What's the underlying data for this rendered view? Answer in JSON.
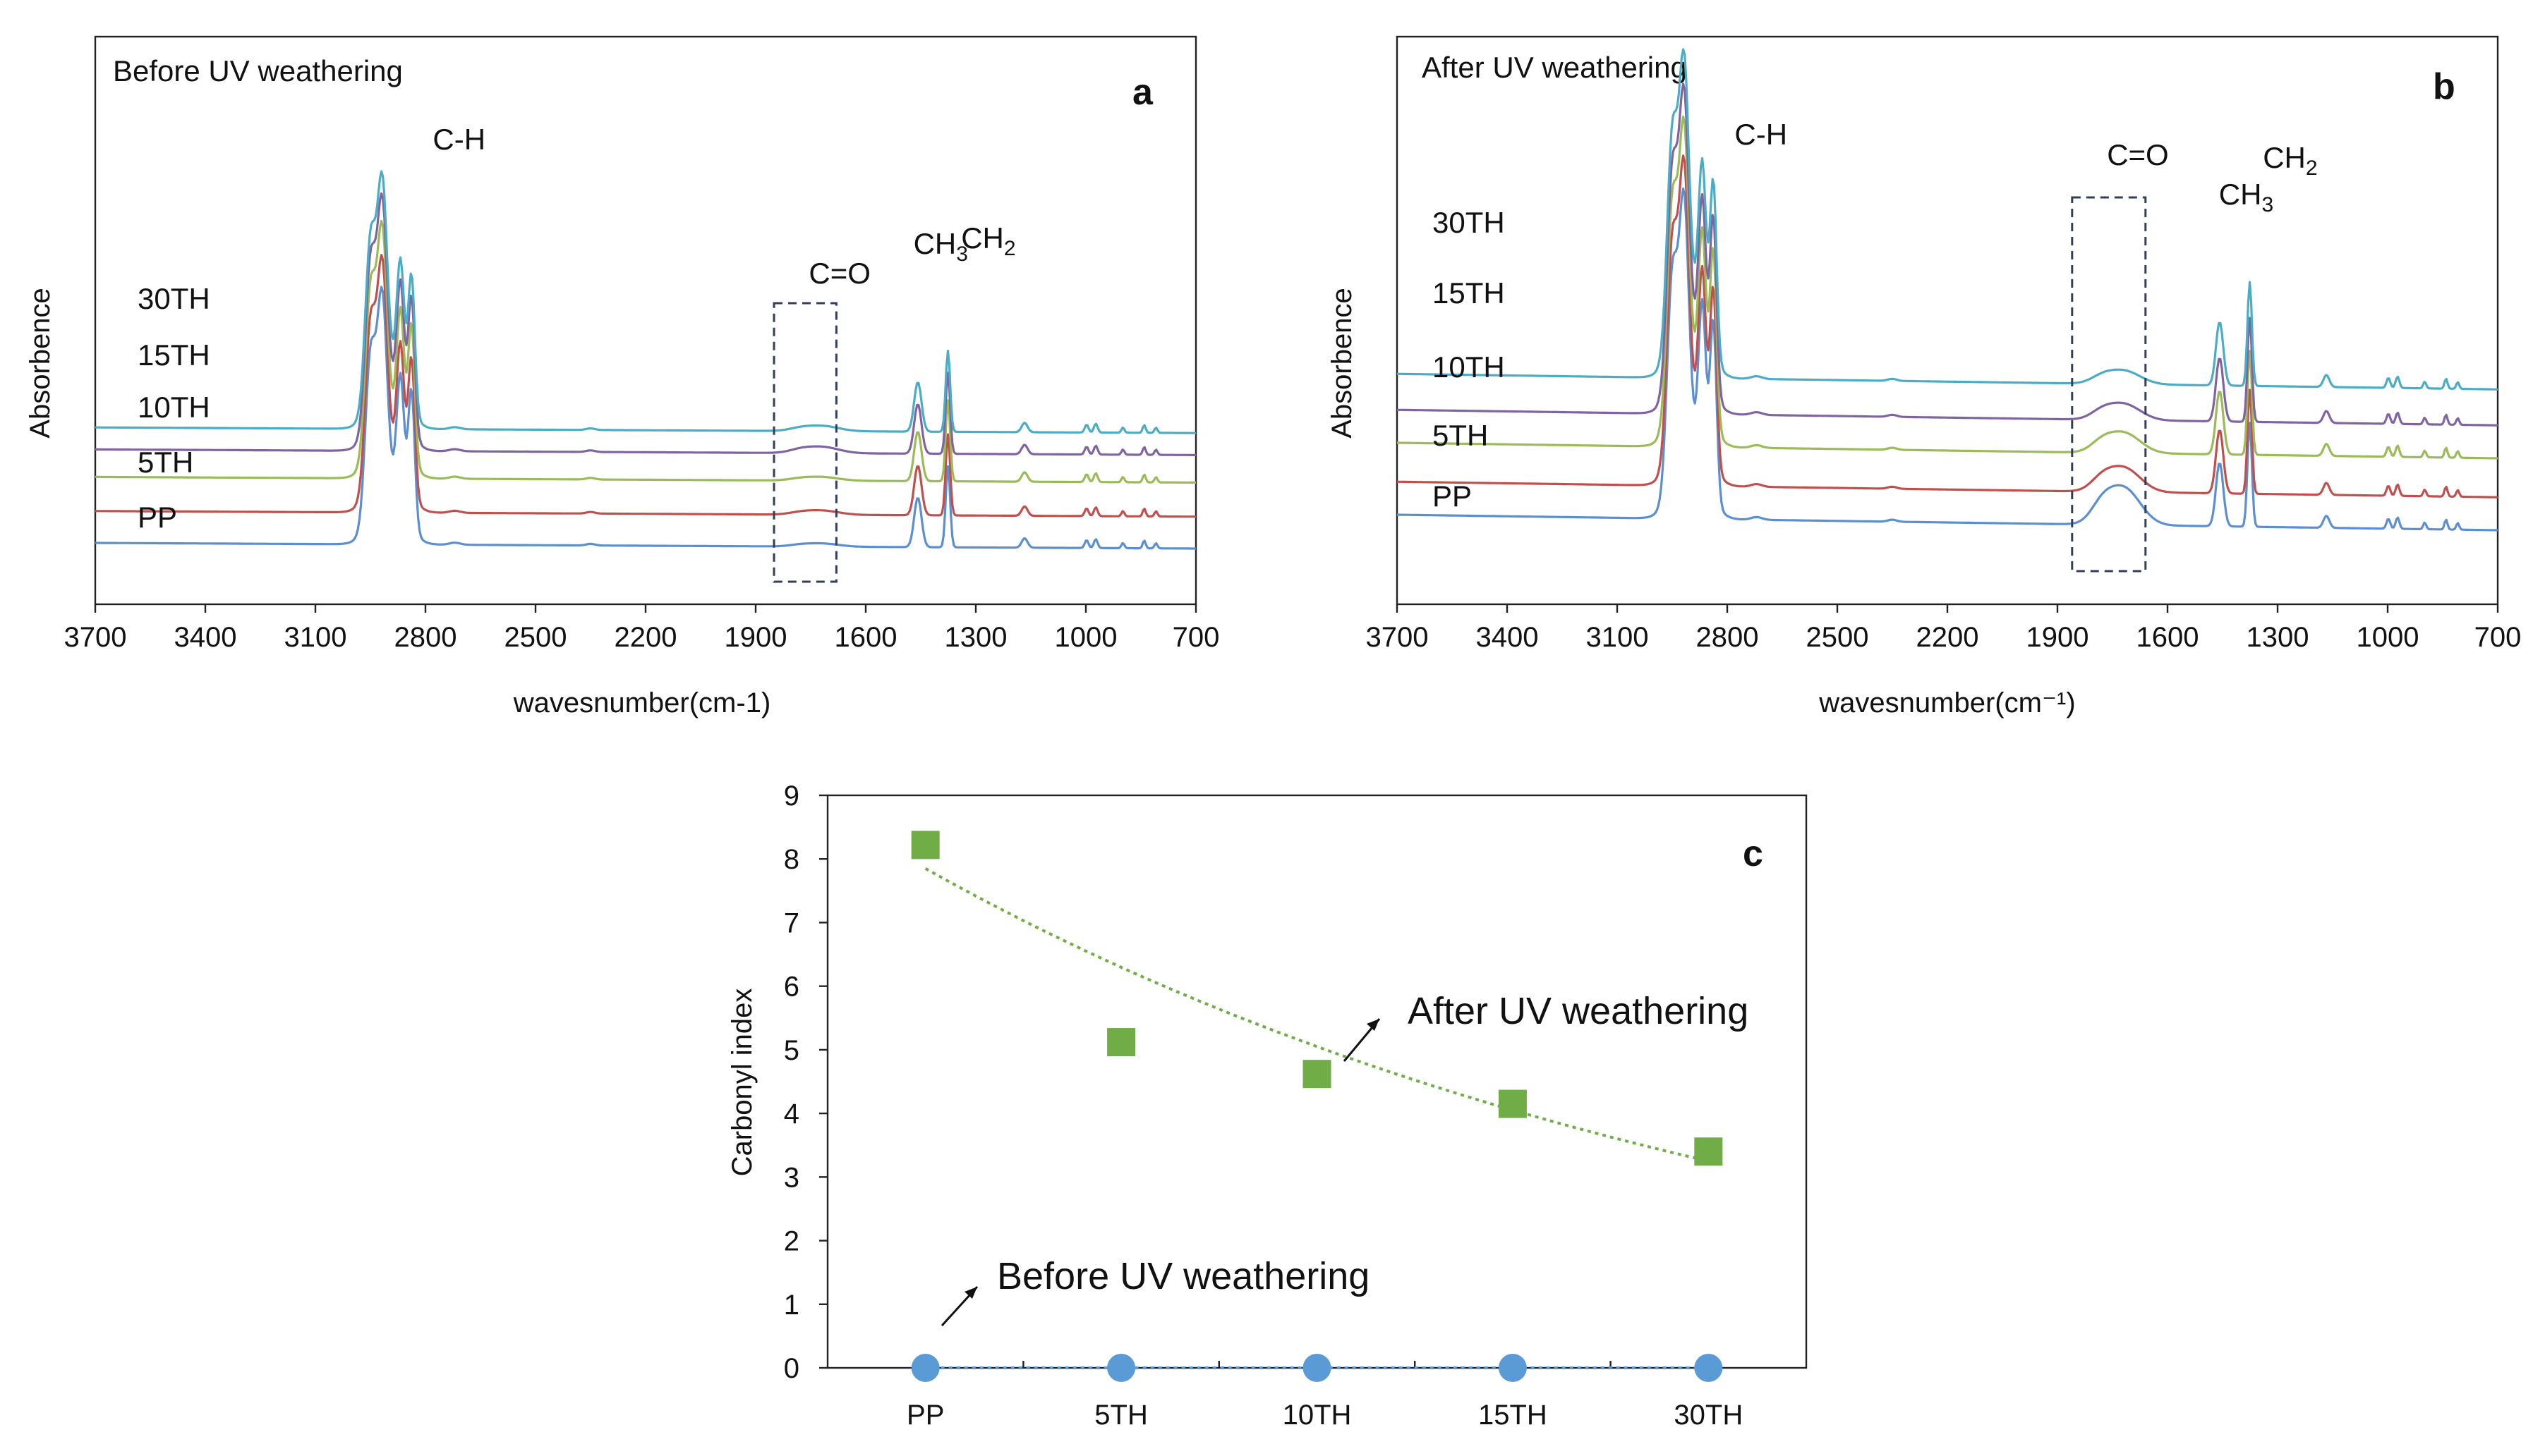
{
  "colors": {
    "PP": "#5b8fd1",
    "5TH": "#c0504d",
    "10TH": "#9bbb59",
    "15TH": "#8064a2",
    "30TH": "#4bacc6",
    "after_marker": "#70ad47",
    "before_marker": "#5b9bd5"
  },
  "chart_data": [
    {
      "id": "a",
      "type": "line",
      "letter": "a",
      "title": "Before UV weathering",
      "xlabel": "wavesnumber(cm-1)",
      "ylabel": "Absorbence",
      "xlim": [
        3700,
        700
      ],
      "xticks": [
        3700,
        3400,
        3100,
        2800,
        2500,
        2200,
        1900,
        1600,
        1300,
        1000,
        700
      ],
      "peak_labels": [
        {
          "text": "C-H",
          "sub": "",
          "x": 2780
        },
        {
          "text": "C=O",
          "sub": "",
          "x": 1755
        },
        {
          "text": "CH",
          "sub": "3",
          "x": 1470
        },
        {
          "text": "CH",
          "sub": "2",
          "x": 1340
        }
      ],
      "highlight_range": [
        1850,
        1680
      ],
      "series": [
        {
          "name": "PP",
          "label": "PP",
          "offset": 0.0,
          "co": 0.06
        },
        {
          "name": "5TH",
          "label": "5TH",
          "offset": 0.58,
          "co": 0.08
        },
        {
          "name": "10TH",
          "label": "10TH",
          "offset": 1.2,
          "co": 0.07
        },
        {
          "name": "15TH",
          "label": "15TH",
          "offset": 1.7,
          "co": 0.12
        },
        {
          "name": "30TH",
          "label": "30TH",
          "offset": 2.1,
          "co": 0.1
        }
      ]
    },
    {
      "id": "b",
      "type": "line",
      "letter": "b",
      "title": "After UV weathering",
      "xlabel": "wavesnumber(cm⁻¹)",
      "ylabel": "Absorbence",
      "xlim": [
        3700,
        700
      ],
      "xticks": [
        3700,
        3400,
        3100,
        2800,
        2500,
        2200,
        1900,
        1600,
        1300,
        1000,
        700
      ],
      "peak_labels": [
        {
          "text": "C-H",
          "sub": "",
          "x": 2780
        },
        {
          "text": "C=O",
          "sub": "",
          "x": 1765
        },
        {
          "text": "CH",
          "sub": "3",
          "x": 1460
        },
        {
          "text": "CH",
          "sub": "2",
          "x": 1340
        }
      ],
      "highlight_range": [
        1860,
        1660
      ],
      "series": [
        {
          "name": "PP",
          "label": "PP",
          "offset": 0.0,
          "co": 0.55
        },
        {
          "name": "5TH",
          "label": "5TH",
          "offset": 0.55,
          "co": 0.36
        },
        {
          "name": "10TH",
          "label": "10TH",
          "offset": 1.2,
          "co": 0.3
        },
        {
          "name": "15TH",
          "label": "15TH",
          "offset": 1.75,
          "co": 0.24
        },
        {
          "name": "30TH",
          "label": "30TH",
          "offset": 2.35,
          "co": 0.2
        }
      ]
    },
    {
      "id": "c",
      "type": "scatter",
      "letter": "c",
      "title": "",
      "xlabel": "",
      "ylabel": "Carbonyl index",
      "categories": [
        "PP",
        "5TH",
        "10TH",
        "15TH",
        "30TH"
      ],
      "ylim": [
        0,
        9
      ],
      "yticks": [
        0,
        1,
        2,
        3,
        4,
        5,
        6,
        7,
        8,
        9
      ],
      "series": [
        {
          "name": "After UV weathering",
          "marker": "square",
          "values": [
            8.22,
            5.12,
            4.62,
            4.15,
            3.4
          ]
        },
        {
          "name": "Before UV weathering",
          "marker": "circle",
          "values": [
            0,
            0,
            0,
            0,
            0
          ]
        }
      ],
      "annotations": [
        {
          "text": "After UV weathering"
        },
        {
          "text": "Before UV weathering"
        }
      ]
    }
  ]
}
